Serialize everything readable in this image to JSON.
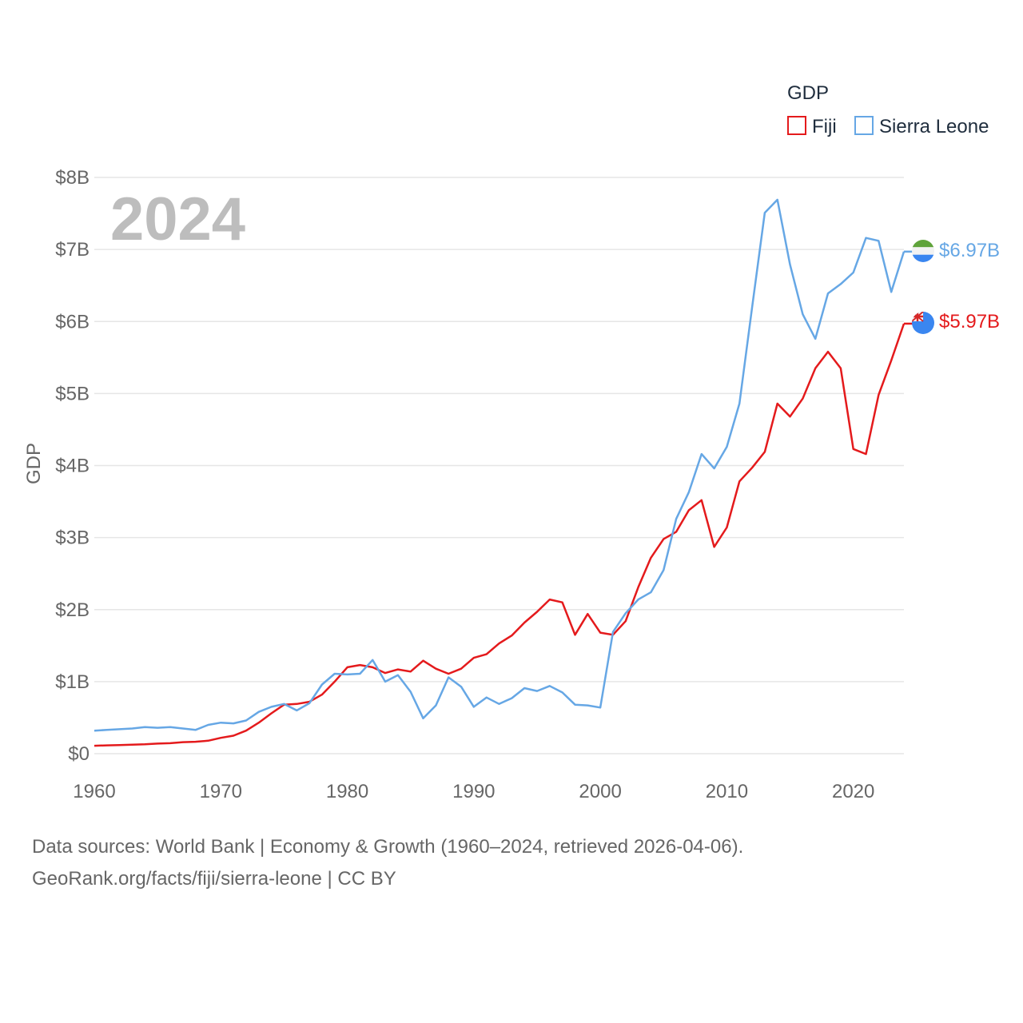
{
  "chart_data": {
    "type": "line",
    "title": "GDP",
    "ylabel": "GDP",
    "xlabel": "",
    "current_year_label": "2024",
    "xlim": [
      1960,
      2024
    ],
    "ylim": [
      0,
      8
    ],
    "y_unit": "billion USD",
    "x_ticks": [
      1960,
      1970,
      1980,
      1990,
      2000,
      2010,
      2020
    ],
    "x_tick_labels": [
      "1960",
      "1970",
      "1980",
      "1990",
      "2000",
      "2010",
      "2020"
    ],
    "y_ticks": [
      0,
      1,
      2,
      3,
      4,
      5,
      6,
      7,
      8
    ],
    "y_tick_labels": [
      "$0",
      "$1B",
      "$2B",
      "$3B",
      "$4B",
      "$5B",
      "$6B",
      "$7B",
      "$8B"
    ],
    "legend_position": "top-right",
    "x": [
      1960,
      1961,
      1962,
      1963,
      1964,
      1965,
      1966,
      1967,
      1968,
      1969,
      1970,
      1971,
      1972,
      1973,
      1974,
      1975,
      1976,
      1977,
      1978,
      1979,
      1980,
      1981,
      1982,
      1983,
      1984,
      1985,
      1986,
      1987,
      1988,
      1989,
      1990,
      1991,
      1992,
      1993,
      1994,
      1995,
      1996,
      1997,
      1998,
      1999,
      2000,
      2001,
      2002,
      2003,
      2004,
      2005,
      2006,
      2007,
      2008,
      2009,
      2010,
      2011,
      2012,
      2013,
      2014,
      2015,
      2016,
      2017,
      2018,
      2019,
      2020,
      2021,
      2022,
      2023,
      2024
    ],
    "series": [
      {
        "name": "Fiji",
        "color": "#e41a1c",
        "end_label": "$5.97B",
        "values": [
          0.11,
          0.115,
          0.12,
          0.125,
          0.13,
          0.14,
          0.145,
          0.16,
          0.165,
          0.18,
          0.22,
          0.25,
          0.32,
          0.43,
          0.56,
          0.68,
          0.69,
          0.72,
          0.82,
          1.0,
          1.2,
          1.23,
          1.2,
          1.12,
          1.17,
          1.14,
          1.29,
          1.18,
          1.11,
          1.18,
          1.33,
          1.38,
          1.53,
          1.64,
          1.82,
          1.97,
          2.14,
          2.1,
          1.65,
          1.94,
          1.68,
          1.65,
          1.84,
          2.31,
          2.72,
          2.98,
          3.08,
          3.38,
          3.52,
          2.87,
          3.14,
          3.78,
          3.97,
          4.19,
          4.86,
          4.68,
          4.93,
          5.35,
          5.58,
          5.35,
          4.23,
          4.16,
          4.98,
          5.46,
          5.97
        ]
      },
      {
        "name": "Sierra Leone",
        "color": "#66a7e5",
        "end_label": "$6.97B",
        "values": [
          0.32,
          0.33,
          0.34,
          0.35,
          0.37,
          0.36,
          0.37,
          0.35,
          0.33,
          0.4,
          0.43,
          0.42,
          0.46,
          0.58,
          0.65,
          0.69,
          0.6,
          0.7,
          0.96,
          1.11,
          1.1,
          1.11,
          1.3,
          1.0,
          1.09,
          0.86,
          0.49,
          0.67,
          1.06,
          0.93,
          0.65,
          0.78,
          0.69,
          0.77,
          0.91,
          0.87,
          0.94,
          0.85,
          0.68,
          0.67,
          0.64,
          1.69,
          1.95,
          2.14,
          2.24,
          2.55,
          3.26,
          3.63,
          4.16,
          3.96,
          4.26,
          4.86,
          6.2,
          7.51,
          7.69,
          6.79,
          6.1,
          5.76,
          6.39,
          6.52,
          6.68,
          7.16,
          7.12,
          6.41,
          6.97
        ]
      }
    ]
  },
  "legend": {
    "title": "GDP",
    "items": [
      "Fiji",
      "Sierra Leone"
    ]
  },
  "source": {
    "line1": "Data sources: World Bank | Economy & Growth (1960–2024, retrieved 2026-04-06).",
    "line2": "GeoRank.org/facts/fiji/sierra-leone | CC BY"
  }
}
